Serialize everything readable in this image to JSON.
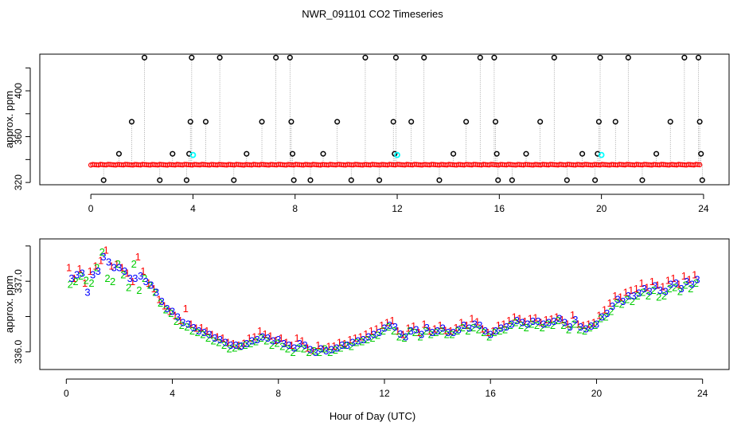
{
  "title": "NWR_091101  CO2 Timeseries",
  "xlabel": "Hour of Day (UTC)",
  "colors": {
    "series1": "#ff0000",
    "series2": "#00cc00",
    "series3": "#0000ff",
    "cyan": "#00ffff",
    "axis": "#000000",
    "line": "#888888"
  },
  "chart_data": [
    {
      "type": "scatter",
      "name": "top-panel",
      "ylabel": "approx. ppm",
      "xlim": [
        -2,
        25
      ],
      "ylim": [
        318,
        432
      ],
      "xticks": [
        0,
        4,
        8,
        12,
        16,
        20,
        24
      ],
      "yticks": [
        320,
        360,
        400
      ],
      "yticks_minor": [
        340,
        380,
        420
      ],
      "baseline": 335.5,
      "outliers": [
        {
          "x": 0.5,
          "y": 322
        },
        {
          "x": 1.1,
          "y": 345
        },
        {
          "x": 1.6,
          "y": 373
        },
        {
          "x": 2.1,
          "y": 429
        },
        {
          "x": 2.7,
          "y": 322
        },
        {
          "x": 3.2,
          "y": 345
        },
        {
          "x": 3.75,
          "y": 322
        },
        {
          "x": 3.85,
          "y": 345
        },
        {
          "x": 3.9,
          "y": 373
        },
        {
          "x": 3.95,
          "y": 429
        },
        {
          "x": 4.5,
          "y": 373
        },
        {
          "x": 5.05,
          "y": 429
        },
        {
          "x": 5.6,
          "y": 322
        },
        {
          "x": 6.1,
          "y": 345
        },
        {
          "x": 6.7,
          "y": 373
        },
        {
          "x": 7.25,
          "y": 429
        },
        {
          "x": 7.8,
          "y": 429
        },
        {
          "x": 7.85,
          "y": 373
        },
        {
          "x": 7.9,
          "y": 345
        },
        {
          "x": 7.95,
          "y": 322
        },
        {
          "x": 8.6,
          "y": 322
        },
        {
          "x": 9.1,
          "y": 345
        },
        {
          "x": 9.65,
          "y": 373
        },
        {
          "x": 10.2,
          "y": 322
        },
        {
          "x": 10.75,
          "y": 429
        },
        {
          "x": 11.3,
          "y": 322
        },
        {
          "x": 11.9,
          "y": 345
        },
        {
          "x": 11.85,
          "y": 373
        },
        {
          "x": 11.95,
          "y": 429
        },
        {
          "x": 12.55,
          "y": 373
        },
        {
          "x": 13.05,
          "y": 429
        },
        {
          "x": 13.65,
          "y": 322
        },
        {
          "x": 14.2,
          "y": 345
        },
        {
          "x": 14.7,
          "y": 373
        },
        {
          "x": 15.25,
          "y": 429
        },
        {
          "x": 15.8,
          "y": 429
        },
        {
          "x": 15.85,
          "y": 373
        },
        {
          "x": 15.9,
          "y": 345
        },
        {
          "x": 15.95,
          "y": 322
        },
        {
          "x": 16.5,
          "y": 322
        },
        {
          "x": 17.05,
          "y": 345
        },
        {
          "x": 17.6,
          "y": 373
        },
        {
          "x": 18.15,
          "y": 429
        },
        {
          "x": 18.65,
          "y": 322
        },
        {
          "x": 19.25,
          "y": 345
        },
        {
          "x": 19.75,
          "y": 322
        },
        {
          "x": 19.85,
          "y": 345
        },
        {
          "x": 19.9,
          "y": 373
        },
        {
          "x": 19.95,
          "y": 429
        },
        {
          "x": 20.55,
          "y": 373
        },
        {
          "x": 21.05,
          "y": 429
        },
        {
          "x": 21.6,
          "y": 322
        },
        {
          "x": 22.15,
          "y": 345
        },
        {
          "x": 22.7,
          "y": 373
        },
        {
          "x": 23.25,
          "y": 429
        },
        {
          "x": 23.8,
          "y": 429
        },
        {
          "x": 23.85,
          "y": 373
        },
        {
          "x": 23.9,
          "y": 345
        },
        {
          "x": 23.95,
          "y": 322
        }
      ],
      "highlights": [
        {
          "x": 4.0,
          "y": 344
        },
        {
          "x": 12.0,
          "y": 344
        },
        {
          "x": 20.0,
          "y": 344
        }
      ]
    },
    {
      "type": "scatter",
      "name": "bottom-panel",
      "ylabel": "approx. ppm",
      "xlim": [
        -1,
        25
      ],
      "ylim": [
        335.75,
        337.6
      ],
      "xticks": [
        0,
        4,
        8,
        12,
        16,
        20,
        24
      ],
      "yticks": [
        336.0,
        337.0
      ],
      "yticks_minor": [
        336.5,
        337.5
      ],
      "series": [
        {
          "name": "1",
          "x": [
            0.1,
            0.3,
            0.5,
            0.7,
            0.9,
            1.1,
            1.3,
            1.5,
            1.7,
            1.9,
            2.1,
            2.3,
            2.5,
            2.7,
            2.9,
            3.1,
            3.3,
            3.5,
            3.7,
            3.9,
            4.1,
            4.3,
            4.5,
            4.7,
            4.9,
            5.1,
            5.3,
            5.5,
            5.7,
            5.9,
            6.1,
            6.3,
            6.5,
            6.7,
            6.9,
            7.1,
            7.3,
            7.5,
            7.7,
            7.9,
            8.1,
            8.3,
            8.5,
            8.7,
            8.9,
            9.1,
            9.3,
            9.5,
            9.7,
            9.9,
            10.1,
            10.3,
            10.5,
            10.7,
            10.9,
            11.1,
            11.3,
            11.5,
            11.7,
            11.9,
            12.1,
            12.3,
            12.5,
            12.7,
            12.9,
            13.1,
            13.3,
            13.5,
            13.7,
            13.9,
            14.1,
            14.3,
            14.5,
            14.7,
            14.9,
            15.1,
            15.3,
            15.5,
            15.7,
            15.9,
            16.1,
            16.3,
            16.5,
            16.7,
            16.9,
            17.1,
            17.3,
            17.5,
            17.7,
            17.9,
            18.1,
            18.3,
            18.5,
            18.7,
            18.9,
            19.1,
            19.3,
            19.5,
            19.7,
            19.9,
            20.1,
            20.3,
            20.5,
            20.7,
            20.9,
            21.1,
            21.3,
            21.5,
            21.7,
            21.9,
            22.1,
            22.3,
            22.5,
            22.7,
            22.9,
            23.1,
            23.3,
            23.5,
            23.7
          ],
          "y": [
            337.2,
            337.05,
            337.18,
            336.98,
            337.15,
            337.22,
            337.3,
            337.45,
            337.22,
            337.25,
            337.2,
            337.12,
            337.0,
            337.35,
            337.15,
            336.98,
            336.9,
            336.75,
            336.66,
            336.58,
            336.52,
            336.45,
            336.62,
            336.4,
            336.34,
            336.35,
            336.3,
            336.25,
            336.22,
            336.2,
            336.14,
            336.12,
            336.1,
            336.13,
            336.2,
            336.22,
            336.3,
            336.26,
            336.23,
            336.17,
            336.2,
            336.14,
            336.1,
            336.2,
            336.16,
            336.06,
            336.02,
            336.1,
            336.05,
            336.08,
            336.09,
            336.14,
            336.12,
            336.18,
            336.2,
            336.22,
            336.26,
            336.3,
            336.33,
            336.38,
            336.42,
            336.45,
            336.3,
            336.25,
            336.34,
            336.37,
            336.28,
            336.4,
            336.3,
            336.33,
            336.38,
            336.31,
            336.3,
            336.35,
            336.42,
            336.38,
            336.48,
            336.43,
            336.33,
            336.28,
            336.3,
            336.38,
            336.4,
            336.45,
            336.5,
            336.48,
            336.44,
            336.48,
            336.49,
            336.42,
            336.46,
            336.47,
            336.5,
            336.46,
            336.4,
            336.53,
            336.4,
            336.38,
            336.4,
            336.42,
            336.52,
            336.6,
            336.7,
            336.8,
            336.78,
            336.85,
            336.88,
            336.9,
            336.98,
            336.92,
            337.0,
            336.95,
            336.93,
            337.02,
            337.05,
            336.96,
            337.08,
            337.03,
            337.1
          ]
        },
        {
          "name": "2",
          "x": [
            0.15,
            0.35,
            0.55,
            0.75,
            0.95,
            1.15,
            1.35,
            1.55,
            1.75,
            1.95,
            2.15,
            2.35,
            2.55,
            2.75,
            2.95,
            3.15,
            3.35,
            3.55,
            3.75,
            3.95,
            4.15,
            4.35,
            4.55,
            4.75,
            4.95,
            5.15,
            5.35,
            5.55,
            5.75,
            5.95,
            6.15,
            6.35,
            6.55,
            6.75,
            6.95,
            7.15,
            7.35,
            7.55,
            7.75,
            7.95,
            8.15,
            8.35,
            8.55,
            8.75,
            8.95,
            9.15,
            9.35,
            9.55,
            9.75,
            9.95,
            10.15,
            10.35,
            10.55,
            10.75,
            10.95,
            11.15,
            11.35,
            11.55,
            11.75,
            11.95,
            12.15,
            12.35,
            12.55,
            12.75,
            12.95,
            13.15,
            13.35,
            13.55,
            13.75,
            13.95,
            14.15,
            14.35,
            14.55,
            14.75,
            14.95,
            15.15,
            15.35,
            15.55,
            15.75,
            15.95,
            16.15,
            16.35,
            16.55,
            16.75,
            16.95,
            17.15,
            17.35,
            17.55,
            17.75,
            17.95,
            18.15,
            18.35,
            18.55,
            18.75,
            18.95,
            19.15,
            19.35,
            19.55,
            19.75,
            19.95,
            20.15,
            20.35,
            20.55,
            20.75,
            20.95,
            21.15,
            21.35,
            21.55,
            21.75,
            21.95,
            22.15,
            22.35,
            22.55,
            22.75,
            22.95,
            23.15,
            23.35,
            23.55,
            23.75
          ],
          "y": [
            336.96,
            337.0,
            337.08,
            337.02,
            336.98,
            337.2,
            337.42,
            337.05,
            337.0,
            337.25,
            337.1,
            336.92,
            337.25,
            336.88,
            337.05,
            336.95,
            336.85,
            336.7,
            336.6,
            336.55,
            336.44,
            336.38,
            336.36,
            336.3,
            336.28,
            336.25,
            336.2,
            336.16,
            336.14,
            336.1,
            336.05,
            336.06,
            336.08,
            336.1,
            336.12,
            336.15,
            336.2,
            336.16,
            336.1,
            336.13,
            336.08,
            336.05,
            336.0,
            336.06,
            336.05,
            336.0,
            336.02,
            336.0,
            336.05,
            336.0,
            336.03,
            336.06,
            336.1,
            336.08,
            336.14,
            336.15,
            336.18,
            336.2,
            336.24,
            336.3,
            336.36,
            336.3,
            336.22,
            336.2,
            336.3,
            336.28,
            336.22,
            336.3,
            336.25,
            336.28,
            336.3,
            336.25,
            336.25,
            336.3,
            336.35,
            336.3,
            336.35,
            336.32,
            336.28,
            336.22,
            336.28,
            336.3,
            336.32,
            336.38,
            336.42,
            336.38,
            336.35,
            336.4,
            336.38,
            336.35,
            336.4,
            336.38,
            336.45,
            336.38,
            336.32,
            336.4,
            336.32,
            336.3,
            336.35,
            336.38,
            336.48,
            336.5,
            336.58,
            336.7,
            336.68,
            336.75,
            336.72,
            336.8,
            336.85,
            336.8,
            336.88,
            336.78,
            336.8,
            336.9,
            336.92,
            336.86,
            336.95,
            336.9,
            336.98
          ]
        },
        {
          "name": "3",
          "x": [
            0.2,
            0.4,
            0.6,
            0.8,
            1.0,
            1.2,
            1.4,
            1.6,
            1.8,
            2.0,
            2.2,
            2.4,
            2.6,
            2.8,
            3.0,
            3.2,
            3.4,
            3.6,
            3.8,
            4.0,
            4.2,
            4.4,
            4.6,
            4.8,
            5.0,
            5.2,
            5.4,
            5.6,
            5.8,
            6.0,
            6.2,
            6.4,
            6.6,
            6.8,
            7.0,
            7.2,
            7.4,
            7.6,
            7.8,
            8.0,
            8.2,
            8.4,
            8.6,
            8.8,
            9.0,
            9.2,
            9.4,
            9.6,
            9.8,
            10.0,
            10.2,
            10.4,
            10.6,
            10.8,
            11.0,
            11.2,
            11.4,
            11.6,
            11.8,
            12.0,
            12.2,
            12.4,
            12.6,
            12.8,
            13.0,
            13.2,
            13.4,
            13.6,
            13.8,
            14.0,
            14.2,
            14.4,
            14.6,
            14.8,
            15.0,
            15.2,
            15.4,
            15.6,
            15.8,
            16.0,
            16.2,
            16.4,
            16.6,
            16.8,
            17.0,
            17.2,
            17.4,
            17.6,
            17.8,
            18.0,
            18.2,
            18.4,
            18.6,
            18.8,
            19.0,
            19.2,
            19.4,
            19.6,
            19.8,
            20.0,
            20.2,
            20.4,
            20.6,
            20.8,
            21.0,
            21.2,
            21.4,
            21.6,
            21.8,
            22.0,
            22.2,
            22.4,
            22.6,
            22.8,
            23.0,
            23.2,
            23.4,
            23.6,
            23.8
          ],
          "y": [
            337.05,
            337.1,
            337.12,
            336.85,
            337.1,
            337.15,
            337.35,
            337.28,
            337.2,
            337.2,
            337.15,
            337.05,
            337.05,
            337.08,
            337.0,
            336.95,
            336.85,
            336.72,
            336.62,
            336.58,
            336.5,
            336.42,
            336.4,
            336.35,
            336.3,
            336.28,
            336.25,
            336.2,
            336.18,
            336.14,
            336.1,
            336.1,
            336.09,
            336.12,
            336.16,
            336.18,
            336.22,
            336.2,
            336.16,
            336.18,
            336.12,
            336.1,
            336.06,
            336.12,
            336.1,
            336.04,
            336.0,
            336.05,
            336.02,
            336.04,
            336.06,
            336.1,
            336.1,
            336.14,
            336.16,
            336.18,
            336.22,
            336.25,
            336.28,
            336.34,
            336.38,
            336.36,
            336.26,
            336.22,
            336.3,
            336.32,
            336.25,
            336.35,
            336.28,
            336.3,
            336.34,
            336.28,
            336.28,
            336.32,
            336.38,
            336.34,
            336.4,
            336.38,
            336.3,
            336.25,
            336.3,
            336.34,
            336.36,
            336.4,
            336.45,
            336.42,
            336.4,
            336.44,
            336.44,
            336.4,
            336.42,
            336.44,
            336.48,
            336.42,
            336.36,
            336.46,
            336.36,
            336.33,
            336.37,
            336.4,
            336.5,
            336.55,
            336.65,
            336.75,
            336.72,
            336.8,
            336.8,
            336.84,
            336.9,
            336.86,
            336.94,
            336.88,
            336.86,
            336.96,
            336.98,
            336.9,
            337.0,
            336.96,
            337.03
          ]
        }
      ]
    }
  ]
}
